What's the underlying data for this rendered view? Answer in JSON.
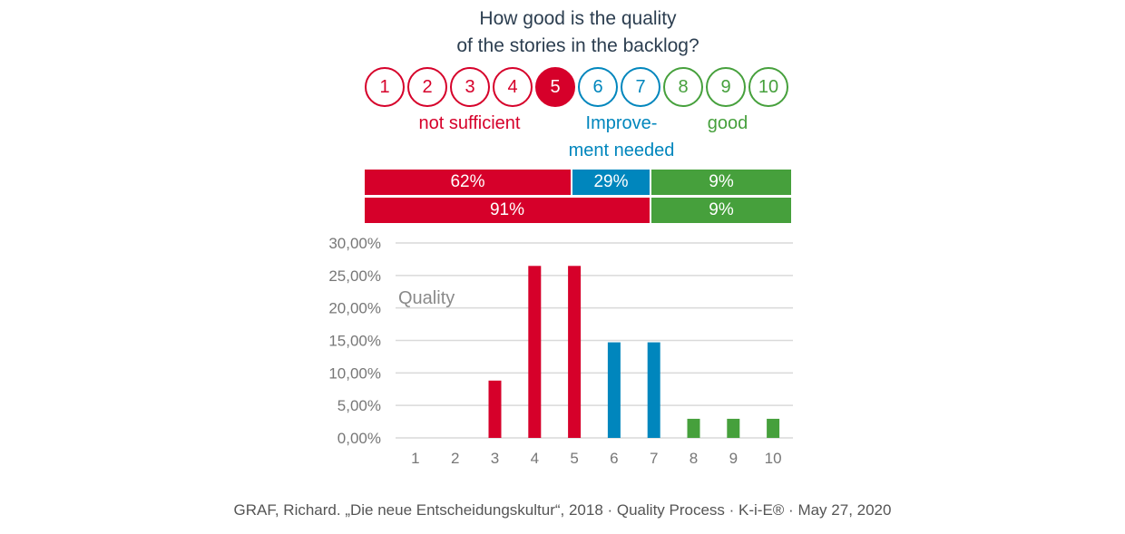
{
  "title_line1": "How good is the quality",
  "title_line2": "of the stories in the backlog?",
  "scale": [
    {
      "n": "1",
      "group": "red",
      "selected": false
    },
    {
      "n": "2",
      "group": "red",
      "selected": false
    },
    {
      "n": "3",
      "group": "red",
      "selected": false
    },
    {
      "n": "4",
      "group": "red",
      "selected": false
    },
    {
      "n": "5",
      "group": "red",
      "selected": true
    },
    {
      "n": "6",
      "group": "blue",
      "selected": false
    },
    {
      "n": "7",
      "group": "blue",
      "selected": false
    },
    {
      "n": "8",
      "group": "green",
      "selected": false
    },
    {
      "n": "9",
      "group": "green",
      "selected": false
    },
    {
      "n": "10",
      "group": "green",
      "selected": false
    }
  ],
  "labels": {
    "not_sufficient": "not sufficient",
    "improve1": "Improve-",
    "improve2": "ment needed",
    "good": "good"
  },
  "summary": {
    "row1": [
      {
        "label": "62%",
        "value": 62,
        "color": "red"
      },
      {
        "label": "29%",
        "value": 29,
        "color": "blue"
      },
      {
        "label": "9%",
        "value": 9,
        "color": "green"
      }
    ],
    "row2": [
      {
        "label": "91%",
        "value": 91,
        "color": "red"
      },
      {
        "label": "9%",
        "value": 9,
        "color": "green"
      }
    ]
  },
  "colors": {
    "red": "#d6002a",
    "blue": "#0086bd",
    "green": "#46a03c"
  },
  "chart_data": {
    "type": "bar",
    "title": "Quality",
    "categories": [
      "1",
      "2",
      "3",
      "4",
      "5",
      "6",
      "7",
      "8",
      "9",
      "10"
    ],
    "values": [
      0,
      0,
      8.82,
      26.47,
      26.47,
      14.71,
      14.71,
      2.94,
      2.94,
      2.94
    ],
    "bar_colors": [
      "red",
      "red",
      "red",
      "red",
      "red",
      "blue",
      "blue",
      "green",
      "green",
      "green"
    ],
    "ylim": [
      0,
      30
    ],
    "yticks": [
      "0,00%",
      "5,00%",
      "10,00%",
      "15,00%",
      "20,00%",
      "25,00%",
      "30,00%"
    ],
    "grid": true,
    "xlabel": "",
    "ylabel": ""
  },
  "footer": "GRAF, Richard. „Die neue Entscheidungskultur“, 2018 · Quality Process · K-i-E® · May 27, 2020"
}
